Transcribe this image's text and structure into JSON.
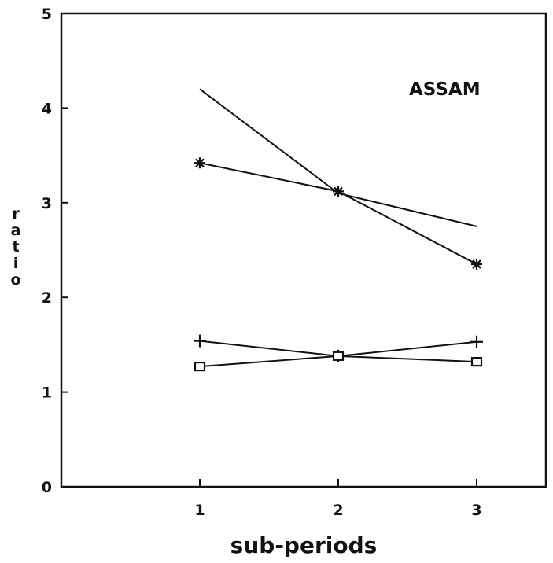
{
  "chart_data": {
    "type": "line",
    "title": "",
    "annotation": "ASSAM",
    "xlabel": "sub-periods",
    "ylabel": "ratio",
    "categories": [
      "1",
      "2",
      "3"
    ],
    "x": [
      1,
      2,
      3
    ],
    "xlim": [
      0,
      3.5
    ],
    "ylim": [
      0,
      5
    ],
    "yticks": [
      "0",
      "1",
      "2",
      "3",
      "4",
      "5"
    ],
    "grid": false,
    "series": [
      {
        "marker": "none",
        "values": [
          4.2,
          3.1,
          2.75
        ]
      },
      {
        "marker": "star",
        "values": [
          3.42,
          3.12,
          2.35
        ]
      },
      {
        "marker": "plus",
        "values": [
          1.54,
          1.38,
          1.53
        ]
      },
      {
        "marker": "square",
        "values": [
          1.27,
          1.38,
          1.32
        ]
      }
    ]
  }
}
